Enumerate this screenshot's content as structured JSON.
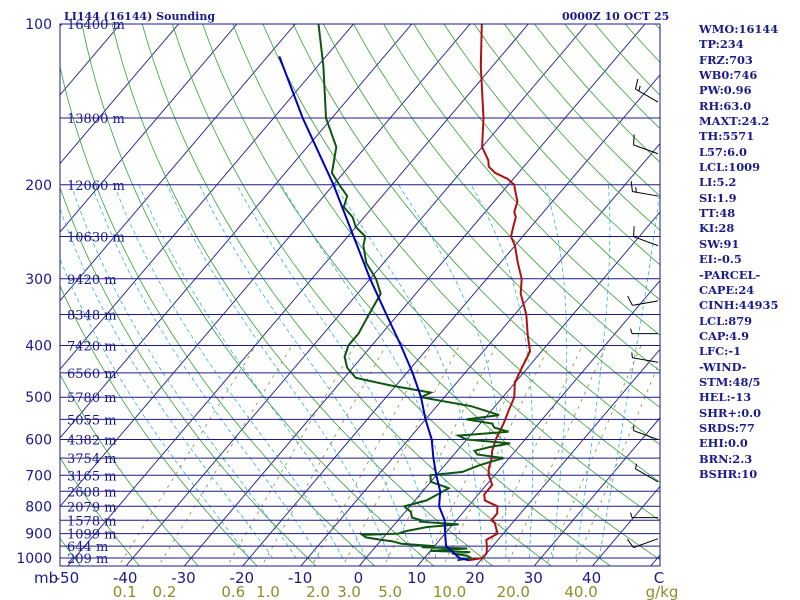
{
  "title": "LI144 (16144) Sounding",
  "timestamp": "0000Z 10 OCT 25",
  "colors": {
    "frame": "#1a1a8c",
    "isotherm": "#1a1a8c",
    "dry_adiabat": "#33a033",
    "moist_adiabat": "#33b0d8",
    "mixing_ratio": "#8c8c2a",
    "temperature": "#b01010",
    "dewpoint": "#0e560e",
    "parcel": "#0000c0",
    "wind": "#000000"
  },
  "chart_data": {
    "type": "skew-T log-P",
    "pressure_axis": {
      "unit": "mb",
      "ticks": [
        100,
        200,
        300,
        400,
        500,
        600,
        700,
        800,
        900,
        1000
      ],
      "range": [
        100,
        1050
      ],
      "scale": "log"
    },
    "temperature_axis": {
      "unit": "C",
      "ticks": [
        -50,
        -40,
        -30,
        -20,
        -10,
        0,
        10,
        20,
        30,
        40
      ],
      "tick_labels": [
        "-50",
        "-40",
        "-30",
        "-20",
        "-10",
        "0",
        "10",
        "20",
        "30",
        "40"
      ],
      "range": [
        -50,
        50
      ]
    },
    "mixing_ratio_axis": {
      "unit": "g/kg",
      "ticks": [
        0.1,
        0.2,
        0.6,
        1.0,
        2.0,
        3.0,
        5.0,
        10.0,
        20.0,
        40.0
      ],
      "tick_labels": [
        "0.1",
        "0.2",
        "0.6",
        "1.0",
        "2.0",
        "3.0",
        "5.0",
        "10.0",
        "20.0",
        "40.0"
      ]
    },
    "heights": [
      {
        "p": 100,
        "label": "16400 m"
      },
      {
        "p": 150,
        "label": "13800 m"
      },
      {
        "p": 200,
        "label": "12060 m"
      },
      {
        "p": 250,
        "label": "10630 m"
      },
      {
        "p": 300,
        "label": "9420 m"
      },
      {
        "p": 350,
        "label": "8348 m"
      },
      {
        "p": 400,
        "label": "7420 m"
      },
      {
        "p": 450,
        "label": "6560 m"
      },
      {
        "p": 500,
        "label": "5780 m"
      },
      {
        "p": 550,
        "label": "5055 m"
      },
      {
        "p": 600,
        "label": "4382 m"
      },
      {
        "p": 650,
        "label": "3754 m"
      },
      {
        "p": 700,
        "label": "3165 m"
      },
      {
        "p": 750,
        "label": "2608 m"
      },
      {
        "p": 800,
        "label": "2079 m"
      },
      {
        "p": 850,
        "label": "1578 m"
      },
      {
        "p": 900,
        "label": "1099 m"
      },
      {
        "p": 950,
        "label": "644 m"
      },
      {
        "p": 1000,
        "label": "209 m"
      }
    ],
    "series": [
      {
        "points": [
          [
            1010,
            18
          ],
          [
            1000,
            20
          ],
          [
            980,
            20
          ],
          [
            950,
            19
          ],
          [
            925,
            18
          ],
          [
            900,
            19
          ],
          [
            860,
            17
          ],
          [
            850,
            16
          ],
          [
            825,
            16
          ],
          [
            800,
            15
          ],
          [
            780,
            12
          ],
          [
            760,
            11
          ],
          [
            730,
            11
          ],
          [
            700,
            9
          ],
          [
            680,
            8
          ],
          [
            650,
            7
          ],
          [
            630,
            6
          ],
          [
            600,
            5
          ],
          [
            560,
            4
          ],
          [
            530,
            3
          ],
          [
            500,
            2
          ],
          [
            470,
            0
          ],
          [
            440,
            -1
          ],
          [
            410,
            -2
          ],
          [
            400,
            -3
          ],
          [
            380,
            -5
          ],
          [
            350,
            -8
          ],
          [
            320,
            -12
          ],
          [
            300,
            -14
          ],
          [
            280,
            -17
          ],
          [
            260,
            -20
          ],
          [
            250,
            -22
          ],
          [
            240,
            -23
          ],
          [
            230,
            -24
          ],
          [
            225,
            -25
          ],
          [
            215,
            -26
          ],
          [
            205,
            -28
          ],
          [
            200,
            -29
          ],
          [
            195,
            -31
          ],
          [
            190,
            -34
          ],
          [
            185,
            -36
          ],
          [
            180,
            -37
          ],
          [
            170,
            -40
          ],
          [
            150,
            -44
          ],
          [
            120,
            -52
          ],
          [
            100,
            -58
          ]
        ]
      },
      {
        "points": [
          [
            1010,
            16
          ],
          [
            1000,
            18
          ],
          [
            990,
            17
          ],
          [
            980,
            14
          ],
          [
            975,
            17
          ],
          [
            970,
            10
          ],
          [
            960,
            16
          ],
          [
            955,
            8
          ],
          [
            950,
            10
          ],
          [
            940,
            4
          ],
          [
            930,
            2
          ],
          [
            925,
            0
          ],
          [
            915,
            -3
          ],
          [
            905,
            -4
          ],
          [
            900,
            2
          ],
          [
            890,
            3
          ],
          [
            875,
            6
          ],
          [
            865,
            11
          ],
          [
            855,
            4
          ],
          [
            850,
            4
          ],
          [
            840,
            2
          ],
          [
            820,
            1
          ],
          [
            800,
            -1
          ],
          [
            780,
            2
          ],
          [
            760,
            3
          ],
          [
            740,
            4
          ],
          [
            720,
            0
          ],
          [
            700,
            -1
          ],
          [
            690,
            4
          ],
          [
            670,
            6
          ],
          [
            650,
            9
          ],
          [
            640,
            4
          ],
          [
            630,
            3
          ],
          [
            620,
            5
          ],
          [
            610,
            8
          ],
          [
            600,
            0
          ],
          [
            590,
            -2
          ],
          [
            580,
            6
          ],
          [
            570,
            3
          ],
          [
            560,
            2
          ],
          [
            550,
            -3
          ],
          [
            540,
            2
          ],
          [
            520,
            -4
          ],
          [
            500,
            -14
          ],
          [
            490,
            -13
          ],
          [
            475,
            -21
          ],
          [
            460,
            -28
          ],
          [
            440,
            -31
          ],
          [
            420,
            -33
          ],
          [
            400,
            -34
          ],
          [
            380,
            -34
          ],
          [
            350,
            -35
          ],
          [
            320,
            -36
          ],
          [
            300,
            -39
          ],
          [
            280,
            -43
          ],
          [
            260,
            -46
          ],
          [
            250,
            -47
          ],
          [
            240,
            -50
          ],
          [
            230,
            -52
          ],
          [
            220,
            -55
          ],
          [
            210,
            -56
          ],
          [
            200,
            -59
          ],
          [
            190,
            -62
          ],
          [
            170,
            -65
          ],
          [
            150,
            -71
          ],
          [
            120,
            -79
          ],
          [
            100,
            -86
          ]
        ]
      },
      {
        "points": [
          [
            1010,
            18
          ],
          [
            1000,
            16
          ],
          [
            950,
            12
          ],
          [
            900,
            10
          ],
          [
            850,
            8
          ],
          [
            800,
            5
          ],
          [
            750,
            3
          ],
          [
            700,
            0
          ],
          [
            650,
            -3
          ],
          [
            600,
            -6
          ],
          [
            550,
            -10
          ],
          [
            500,
            -14
          ],
          [
            450,
            -19
          ],
          [
            400,
            -25
          ],
          [
            350,
            -32
          ],
          [
            300,
            -40
          ],
          [
            250,
            -49
          ],
          [
            200,
            -60
          ],
          [
            150,
            -75
          ],
          [
            115,
            -88
          ]
        ]
      }
    ],
    "wind_barbs": [
      {
        "p": 140,
        "dir": 300,
        "spd": 15
      },
      {
        "p": 175,
        "dir": 290,
        "spd": 10
      },
      {
        "p": 210,
        "dir": 280,
        "spd": 15
      },
      {
        "p": 260,
        "dir": 290,
        "spd": 10
      },
      {
        "p": 330,
        "dir": 260,
        "spd": 10
      },
      {
        "p": 380,
        "dir": 270,
        "spd": 5
      },
      {
        "p": 430,
        "dir": 280,
        "spd": 5
      },
      {
        "p": 600,
        "dir": 290,
        "spd": 5
      },
      {
        "p": 720,
        "dir": 300,
        "spd": 5
      },
      {
        "p": 840,
        "dir": 270,
        "spd": 5
      },
      {
        "p": 920,
        "dir": 250,
        "spd": 10
      }
    ]
  },
  "indices": [
    "WMO:16144",
    "TP:234",
    "FRZ:703",
    "WB0:746",
    "PW:0.96",
    "RH:63.0",
    "MAXT:24.2",
    "TH:5571",
    "L57:6.0",
    "LCL:1009",
    "LI:5.2",
    "SI:1.9",
    "TT:48",
    "KI:28",
    "SW:91",
    "EI:-0.5",
    "-PARCEL-",
    "CAPE:24",
    "CINH:44935",
    "LCL:879",
    "CAP:4.9",
    "LFC:-1",
    "-WIND-",
    "STM:48/5",
    "HEL:-13",
    "SHR+:0.0",
    "SRDS:77",
    "EHI:0.0",
    "BRN:2.3",
    "BSHR:10"
  ]
}
